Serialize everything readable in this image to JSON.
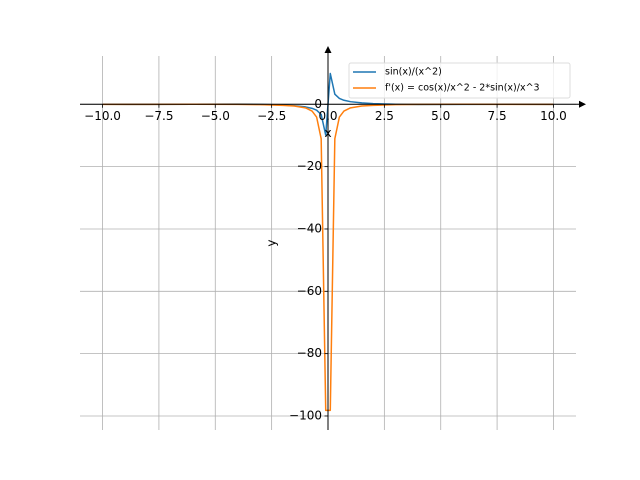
{
  "chart_data": {
    "type": "line",
    "xlabel": "x",
    "ylabel": "y",
    "x": [
      -10,
      -8,
      -6,
      -4,
      -3,
      -2,
      -1.5,
      -1,
      -0.707,
      -0.505,
      -0.303,
      -0.101,
      0.101,
      0.303,
      0.505,
      0.707,
      1,
      1.5,
      2,
      3,
      4,
      6,
      8,
      10
    ],
    "series": [
      {
        "name": "sin(x)/(x^2)",
        "color": "#1f77b4",
        "values": [
          0.0054,
          -0.0155,
          0.0078,
          0.047,
          -0.0157,
          -0.227,
          -0.443,
          -0.841,
          -1.3,
          -1.897,
          -3.25,
          -9.884,
          9.884,
          3.25,
          1.897,
          1.3,
          0.841,
          0.443,
          0.227,
          0.0157,
          -0.047,
          -0.0078,
          0.0155,
          -0.0054
        ]
      },
      {
        "name": "f'(x) = cos(x)/x^2 - 2*sin(x)/x^3",
        "color": "#ff7f0e",
        "values": [
          -0.007,
          -0.006,
          0.029,
          -0.017,
          -0.12,
          -0.33,
          -0.56,
          -1.14,
          -2.16,
          -4.08,
          -11.05,
          -98.2,
          -98.2,
          -11.05,
          -4.08,
          -2.16,
          -1.14,
          -0.56,
          -0.33,
          -0.12,
          -0.017,
          0.029,
          -0.006,
          -0.007
        ]
      }
    ],
    "xlim": [
      -11,
      11
    ],
    "ylim": [
      -104.5,
      15.5
    ],
    "xticks": [
      {
        "value": -10,
        "label": "−10.0"
      },
      {
        "value": -7.5,
        "label": "−7.5"
      },
      {
        "value": -5,
        "label": "−5.0"
      },
      {
        "value": -2.5,
        "label": "−2.5"
      },
      {
        "value": 0,
        "label": "0.0"
      },
      {
        "value": 2.5,
        "label": "2.5"
      },
      {
        "value": 5,
        "label": "5.0"
      },
      {
        "value": 7.5,
        "label": "7.5"
      },
      {
        "value": 10,
        "label": "10.0"
      }
    ],
    "yticks": [
      {
        "value": -100,
        "label": "−100"
      },
      {
        "value": -80,
        "label": "−80"
      },
      {
        "value": -60,
        "label": "−60"
      },
      {
        "value": -40,
        "label": "−40"
      },
      {
        "value": -20,
        "label": "−20"
      },
      0
    ],
    "grid": true,
    "legend": "upper right"
  }
}
